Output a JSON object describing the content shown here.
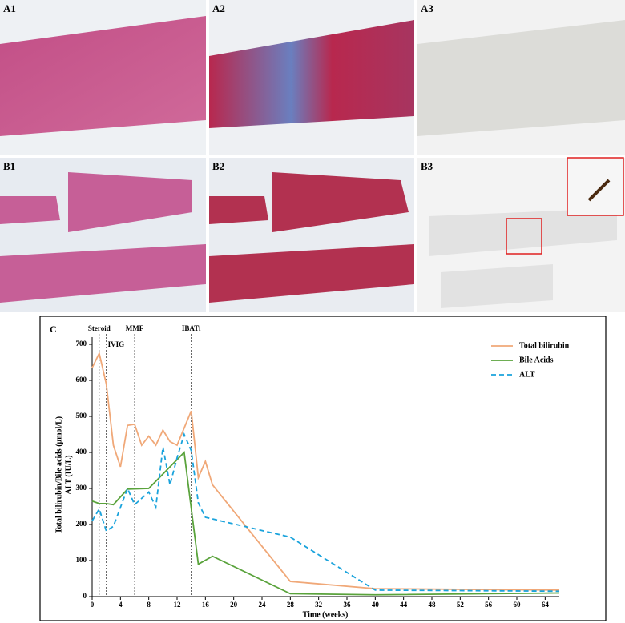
{
  "panels": [
    "A1",
    "A2",
    "A3",
    "B1",
    "B2",
    "B3"
  ],
  "chart_data": {
    "type": "line",
    "label": "C",
    "xlabel": "Time (weeks)",
    "ylabel": [
      "Total bilirubin/Bile acids (μmol/L)",
      "ALT (IU/L)"
    ],
    "xlim": [
      0,
      66
    ],
    "xticks": [
      0,
      4,
      8,
      12,
      16,
      20,
      24,
      28,
      32,
      36,
      40,
      44,
      48,
      52,
      56,
      60,
      64
    ],
    "ylim": [
      0,
      720
    ],
    "yticks": [
      0,
      100,
      200,
      300,
      400,
      500,
      600,
      700
    ],
    "legend": "upper right",
    "annotations": [
      {
        "label": "Steroid",
        "x": 1
      },
      {
        "label": "IVIG",
        "x": 2
      },
      {
        "label": "MMF",
        "x": 6
      },
      {
        "label": "IBATi",
        "x": 14
      }
    ],
    "series": [
      {
        "name": "Total bilirubin",
        "color": "#f0a878",
        "dash": false,
        "x": [
          0,
          1,
          2,
          3,
          4,
          5,
          6,
          7,
          8,
          9,
          10,
          11,
          12,
          14,
          15,
          16,
          17,
          28,
          40,
          66
        ],
        "values": [
          635,
          675,
          590,
          420,
          360,
          475,
          478,
          420,
          445,
          420,
          462,
          430,
          420,
          515,
          330,
          375,
          310,
          42,
          22,
          18
        ]
      },
      {
        "name": "Bile Acids",
        "color": "#5aa33c",
        "dash": false,
        "x": [
          0,
          1,
          2,
          3,
          5,
          8,
          13,
          15,
          17,
          28,
          40,
          66
        ],
        "values": [
          265,
          258,
          258,
          255,
          298,
          300,
          400,
          90,
          112,
          8,
          5,
          10
        ]
      },
      {
        "name": "ALT",
        "color": "#1aa3dc",
        "dash": true,
        "x": [
          0,
          1,
          2,
          3,
          5,
          6,
          8,
          9,
          10,
          11,
          12,
          13,
          14,
          15,
          16,
          28,
          40,
          66
        ],
        "values": [
          210,
          243,
          182,
          195,
          300,
          255,
          290,
          248,
          415,
          310,
          385,
          450,
          405,
          260,
          220,
          165,
          18,
          15
        ]
      }
    ]
  }
}
